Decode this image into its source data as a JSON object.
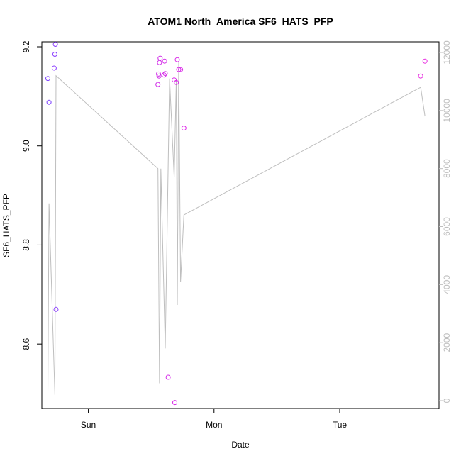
{
  "chart_data": {
    "type": "scatter",
    "title": "ATOM1 North_America SF6_HATS_PFP",
    "xlabel": "Date",
    "ylabel": "SF6_HATS_PFP",
    "x_unit": "days",
    "xlim": [
      -0.37,
      2.79
    ],
    "ylim": [
      8.47,
      9.21
    ],
    "y2lim": [
      0,
      12000
    ],
    "x_ticks": [
      {
        "value": 0,
        "label": "Sun"
      },
      {
        "value": 1,
        "label": "Mon"
      },
      {
        "value": 2,
        "label": "Tue"
      }
    ],
    "y_ticks": [
      {
        "value": 8.6,
        "label": "8.6"
      },
      {
        "value": 8.8,
        "label": "8.8"
      },
      {
        "value": 9.0,
        "label": "9.0"
      },
      {
        "value": 9.2,
        "label": "9.2"
      }
    ],
    "y2_ticks": [
      {
        "value": 0,
        "label": "0"
      },
      {
        "value": 2000,
        "label": "2000"
      },
      {
        "value": 4000,
        "label": "4000"
      },
      {
        "value": 6000,
        "label": "6000"
      },
      {
        "value": 8000,
        "label": "8000"
      },
      {
        "value": 10000,
        "label": "10000"
      },
      {
        "value": 12000,
        "label": "12000"
      }
    ],
    "series": [
      {
        "kind": "points",
        "color": "gradient blue-violet to magenta",
        "points": [
          {
            "x": -0.322,
            "y": 9.136,
            "color": "#7a3cff"
          },
          {
            "x": -0.313,
            "y": 9.088,
            "color": "#7a3cff"
          },
          {
            "x": -0.272,
            "y": 9.157,
            "color": "#8a3cff"
          },
          {
            "x": -0.266,
            "y": 9.185,
            "color": "#8a3cff"
          },
          {
            "x": -0.262,
            "y": 9.205,
            "color": "#8a3cff"
          },
          {
            "x": -0.257,
            "y": 8.67,
            "color": "#8a3cff"
          },
          {
            "x": 0.554,
            "y": 9.124,
            "color": "#d02ae8"
          },
          {
            "x": 0.558,
            "y": 9.145,
            "color": "#d02ae8"
          },
          {
            "x": 0.562,
            "y": 9.141,
            "color": "#d02ae8"
          },
          {
            "x": 0.566,
            "y": 9.168,
            "color": "#d02ae8"
          },
          {
            "x": 0.571,
            "y": 9.177,
            "color": "#d02ae8"
          },
          {
            "x": 0.602,
            "y": 9.143,
            "color": "#d52ae8"
          },
          {
            "x": 0.607,
            "y": 9.171,
            "color": "#d52ae8"
          },
          {
            "x": 0.612,
            "y": 9.146,
            "color": "#d52ae8"
          },
          {
            "x": 0.635,
            "y": 8.533,
            "color": "#d52ae8"
          },
          {
            "x": 0.683,
            "y": 9.133,
            "color": "#da2ae8"
          },
          {
            "x": 0.688,
            "y": 8.482,
            "color": "#da2ae8"
          },
          {
            "x": 0.7,
            "y": 9.128,
            "color": "#da2ae8"
          },
          {
            "x": 0.708,
            "y": 9.174,
            "color": "#da2ae8"
          },
          {
            "x": 0.719,
            "y": 9.154,
            "color": "#da2ae8"
          },
          {
            "x": 0.734,
            "y": 9.154,
            "color": "#da2ae8"
          },
          {
            "x": 0.76,
            "y": 9.036,
            "color": "#dd2ae8"
          },
          {
            "x": 2.644,
            "y": 9.141,
            "color": "#e82ae0"
          },
          {
            "x": 2.678,
            "y": 9.171,
            "color": "#e82ae0"
          }
        ]
      },
      {
        "kind": "line",
        "axis": "right",
        "color": "#bebebe",
        "points": [
          {
            "x": -0.322,
            "y": 200
          },
          {
            "x": -0.313,
            "y": 6800
          },
          {
            "x": -0.266,
            "y": 200
          },
          {
            "x": -0.257,
            "y": 11200
          },
          {
            "x": 0.554,
            "y": 8000
          },
          {
            "x": 0.566,
            "y": 600
          },
          {
            "x": 0.577,
            "y": 8000
          },
          {
            "x": 0.612,
            "y": 1800
          },
          {
            "x": 0.646,
            "y": 11100
          },
          {
            "x": 0.683,
            "y": 7700
          },
          {
            "x": 0.7,
            "y": 11100
          },
          {
            "x": 0.708,
            "y": 3300
          },
          {
            "x": 0.719,
            "y": 11700
          },
          {
            "x": 0.734,
            "y": 4100
          },
          {
            "x": 0.76,
            "y": 6400
          },
          {
            "x": 2.644,
            "y": 10800
          },
          {
            "x": 2.678,
            "y": 9800
          }
        ]
      }
    ]
  }
}
